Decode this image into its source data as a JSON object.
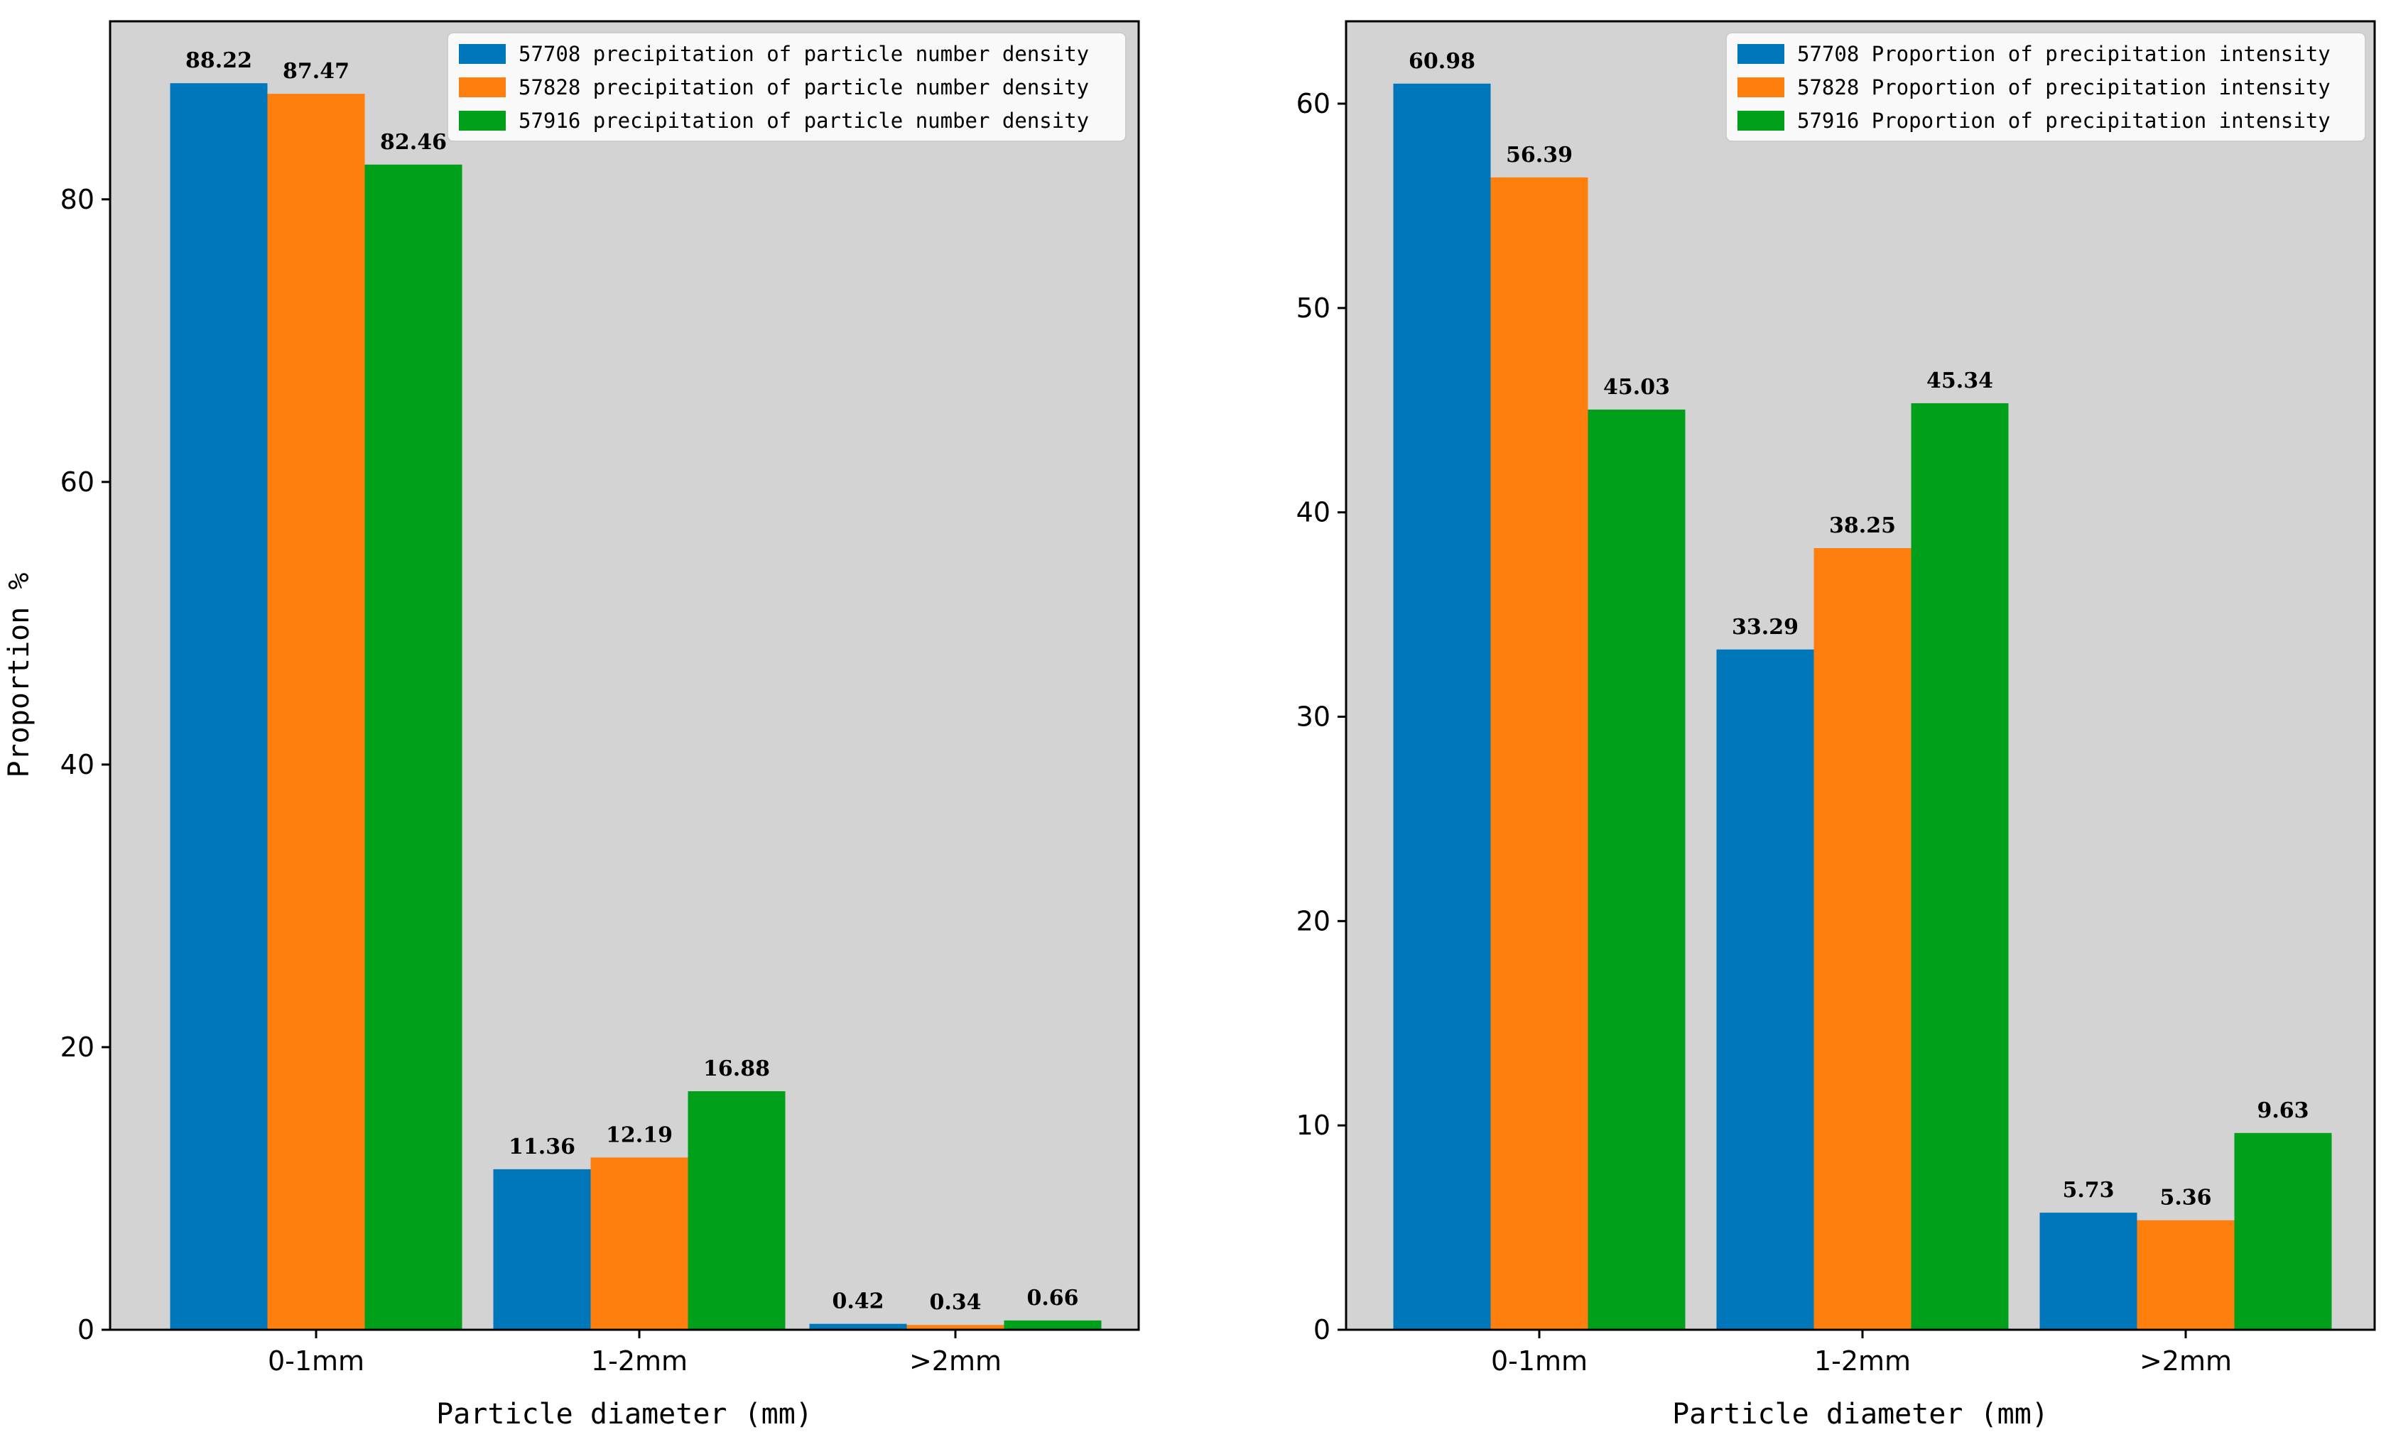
{
  "chart_data": [
    {
      "type": "bar",
      "categories": [
        "0-1mm",
        "1-2mm",
        ">2mm"
      ],
      "series": [
        {
          "name": "57708 precipitation of particle number density",
          "color": "#0077bb",
          "values": [
            88.22,
            11.36,
            0.42
          ]
        },
        {
          "name": "57828 precipitation of particle number density",
          "color": "#ff7f0e",
          "values": [
            87.47,
            12.19,
            0.34
          ]
        },
        {
          "name": "57916 precipitation of particle number density",
          "color": "#00a01a",
          "values": [
            82.46,
            16.88,
            0.66
          ]
        }
      ],
      "value_labels": [
        [
          "88.22",
          "11.36",
          "0.42"
        ],
        [
          "87.47",
          "12.19",
          "0.34"
        ],
        [
          "82.46",
          "16.88",
          "0.66"
        ]
      ],
      "xlabel": "Particle diameter (mm)",
      "ylabel": "Proportion %",
      "ylim": [
        0,
        92.6
      ],
      "yticks": [
        0,
        20,
        40,
        60,
        80
      ],
      "legend_position": "top-right",
      "grid": false,
      "background": "#d3d3d3"
    },
    {
      "type": "bar",
      "categories": [
        "0-1mm",
        "1-2mm",
        ">2mm"
      ],
      "series": [
        {
          "name": "57708 Proportion of precipitation intensity",
          "color": "#0077bb",
          "values": [
            60.98,
            33.29,
            5.73
          ]
        },
        {
          "name": "57828 Proportion of precipitation intensity",
          "color": "#ff7f0e",
          "values": [
            56.39,
            38.25,
            5.36
          ]
        },
        {
          "name": "57916 Proportion of precipitation intensity",
          "color": "#00a01a",
          "values": [
            45.03,
            45.34,
            9.63
          ]
        }
      ],
      "value_labels": [
        [
          "60.98",
          "33.29",
          "5.73"
        ],
        [
          "56.39",
          "38.25",
          "5.36"
        ],
        [
          "45.03",
          "45.34",
          "9.63"
        ]
      ],
      "xlabel": "Particle diameter (mm)",
      "ylabel": "",
      "ylim": [
        0,
        64.03
      ],
      "yticks": [
        0,
        10,
        20,
        30,
        40,
        50,
        60
      ],
      "legend_position": "top-right",
      "grid": false,
      "background": "#d3d3d3"
    }
  ]
}
